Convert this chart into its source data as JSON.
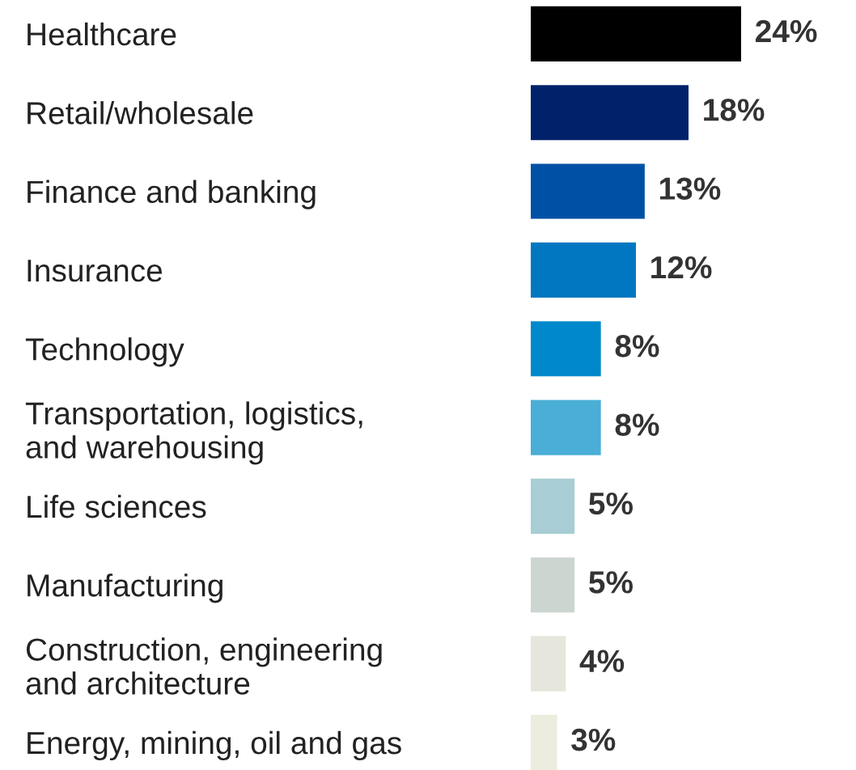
{
  "chart_data": {
    "type": "bar",
    "orientation": "horizontal",
    "categories": [
      "Healthcare",
      "Retail/wholesale",
      "Finance and banking",
      "Insurance",
      "Technology",
      "Transportation, logistics,\nand warehousing",
      "Life sciences",
      "Manufacturing",
      "Construction, engineering\nand architecture",
      "Energy, mining, oil and gas"
    ],
    "values": [
      24,
      18,
      13,
      12,
      8,
      8,
      5,
      5,
      4,
      3
    ],
    "colors": [
      "#000000",
      "#00226b",
      "#0051a5",
      "#0077c0",
      "#0088cc",
      "#4aaed6",
      "#a8cdd4",
      "#ccd6d0",
      "#e6e6dc",
      "#ececdf"
    ],
    "value_labels": [
      "24%",
      "18%",
      "13%",
      "12%",
      "8%",
      "8%",
      "5%",
      "5%",
      "4%",
      "3%"
    ],
    "grid": false,
    "legend": false
  }
}
